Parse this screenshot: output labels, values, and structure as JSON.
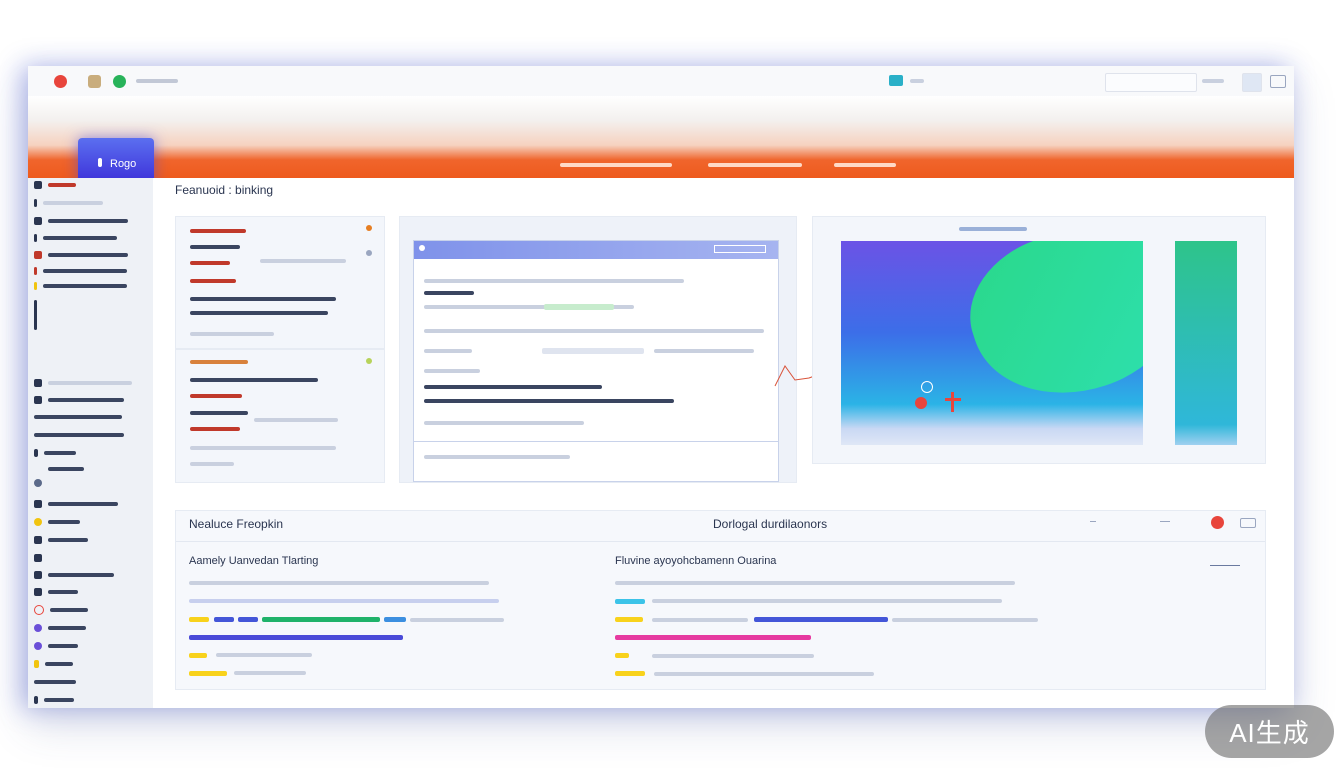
{
  "app": {
    "logo_label": "Rogo"
  },
  "main": {
    "page_title": "Feanuoid : binking",
    "bottom_left_title": "Nealuce Freopkin",
    "bottom_center_title": "Dorlogal durdilaonors",
    "chart_section_title": "Aamely Uanvedan Tlarting",
    "right_section_title": "Fluvine ayoyohcbamenn Ouarina"
  },
  "watermark": "AI生成",
  "colors": {
    "accent": "#ee5a1d",
    "brand": "#3c2fd8",
    "green": "#1fb26a",
    "yellow": "#f8d21c",
    "blue": "#4456d8",
    "magenta": "#e63aa0",
    "cyan": "#3cc3e8"
  },
  "icons": [
    "close-dot-icon",
    "folder-icon",
    "green-dot-icon",
    "chat-icon",
    "window-icon",
    "collapse-icon",
    "record-icon",
    "expand-icon"
  ]
}
